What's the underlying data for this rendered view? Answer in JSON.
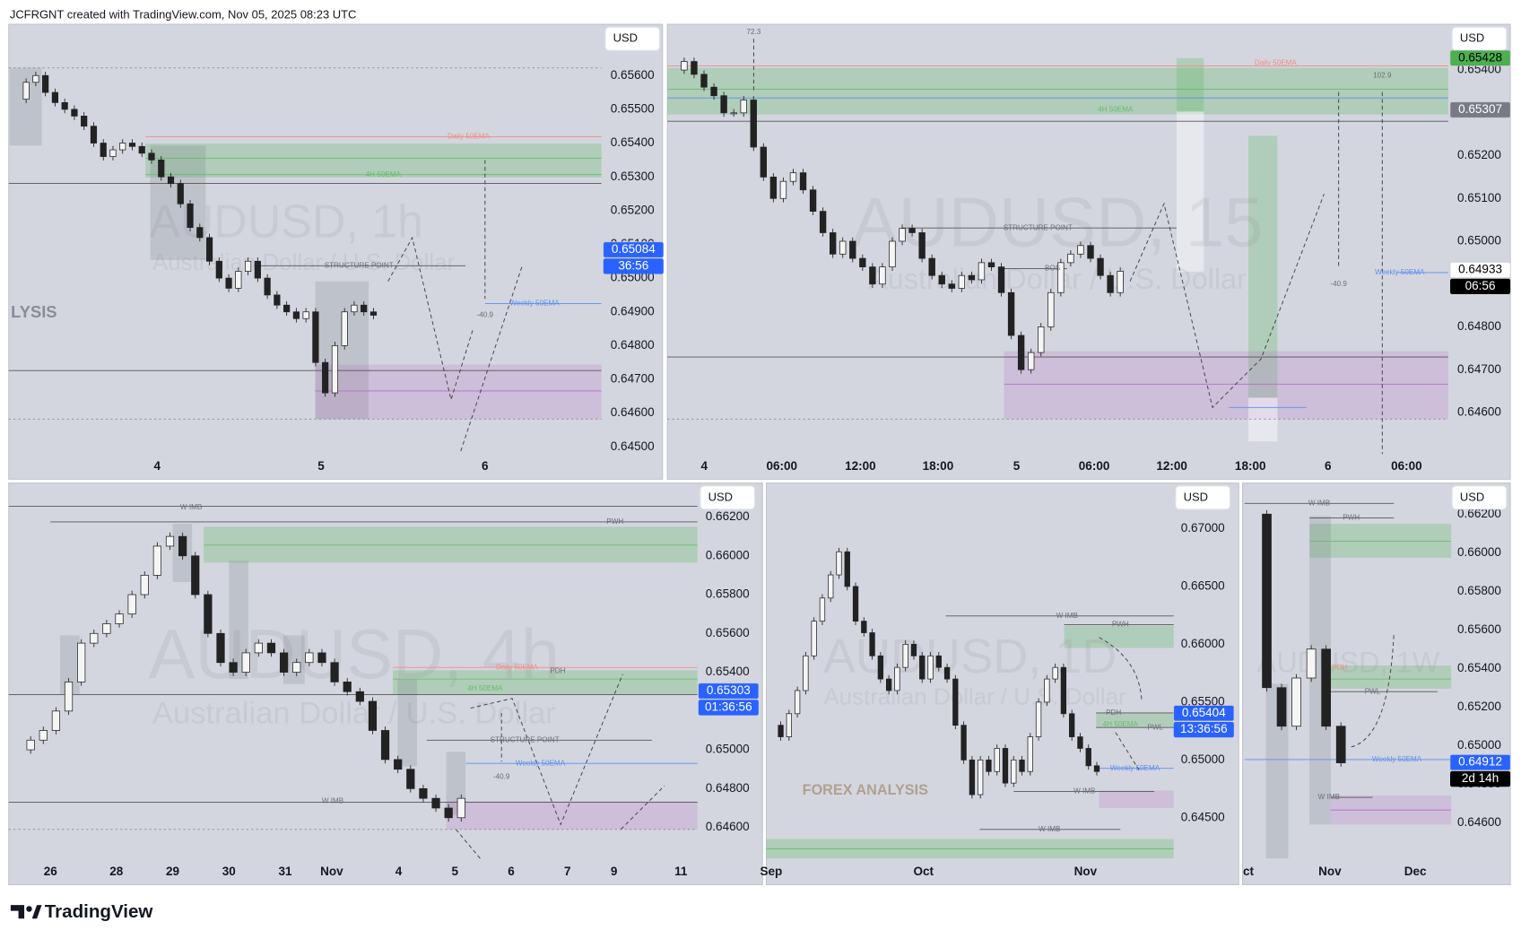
{
  "header": {
    "text": "JCFRGNT created with TradingView.com, Nov 05, 2025 08:23 UTC"
  },
  "footer": {
    "logo": "TradingView"
  },
  "panels": [
    {
      "currency": "USD",
      "watermark": [
        "AUDUSD, 1h",
        "Australian Dollar / U.S. Dollar"
      ],
      "ylim": [
        0.64479,
        0.65752
      ],
      "yticks": [
        {
          "value": 0.656,
          "label": "0.65600"
        },
        {
          "value": 0.655,
          "label": "0.65500"
        },
        {
          "value": 0.654,
          "label": "0.65400"
        },
        {
          "value": 0.653,
          "label": "0.65300"
        },
        {
          "value": 0.652,
          "label": "0.65200"
        },
        {
          "value": 0.651,
          "label": "0.65100"
        },
        {
          "value": 0.65,
          "label": "0.65000"
        },
        {
          "value": 0.649,
          "label": "0.64900"
        },
        {
          "value": 0.648,
          "label": "0.64800"
        },
        {
          "value": 0.647,
          "label": "0.64700"
        },
        {
          "value": 0.646,
          "label": "0.64600"
        },
        {
          "value": 0.645,
          "label": "0.64500"
        }
      ],
      "xticks": [
        "4",
        "5",
        "6"
      ],
      "price_tags": [
        {
          "value": 0.65084,
          "color": "#2962ff",
          "text_color": "#ffffff",
          "countdown": "36:56",
          "countdown_color": "#2962ff"
        }
      ],
      "annotations": [
        "Daily 50EMA",
        "4H 50EMA",
        "STRUCTURE POINT",
        "Weekly 50EMA",
        "-40.9",
        "LYSIS"
      ],
      "prices": [
        0.6553,
        0.6558,
        0.656,
        0.6555,
        0.6552,
        0.655,
        0.6548,
        0.6545,
        0.654,
        0.6536,
        0.6538,
        0.654,
        0.6539,
        0.6537,
        0.6535,
        0.653,
        0.6528,
        0.6522,
        0.6515,
        0.6512,
        0.6505,
        0.65,
        0.6497,
        0.6502,
        0.6505,
        0.65,
        0.6495,
        0.6492,
        0.649,
        0.6488,
        0.649,
        0.6475,
        0.6466,
        0.648,
        0.649,
        0.6492,
        0.649,
        0.6489
      ]
    },
    {
      "currency": "USD",
      "watermark": [
        "AUDUSD, 15",
        "Australian Dollar / U.S. Dollar"
      ],
      "ylim": [
        0.64503,
        0.65507
      ],
      "yticks": [
        {
          "value": 0.654,
          "label": "0.65400"
        },
        {
          "value": 0.653,
          "label": "0.65300"
        },
        {
          "value": 0.652,
          "label": "0.65200"
        },
        {
          "value": 0.651,
          "label": "0.65100"
        },
        {
          "value": 0.65,
          "label": "0.65000"
        },
        {
          "value": 0.649,
          "label": "0.64900"
        },
        {
          "value": 0.648,
          "label": "0.64800"
        },
        {
          "value": 0.647,
          "label": "0.64700"
        },
        {
          "value": 0.646,
          "label": "0.64600"
        }
      ],
      "xticks": [
        "4",
        "06:00",
        "12:00",
        "18:00",
        "5",
        "06:00",
        "12:00",
        "18:00",
        "6",
        "06:00"
      ],
      "price_tags": [
        {
          "value": 0.65428,
          "color": "#4caf50",
          "text_color": "#000000"
        },
        {
          "value": 0.65307,
          "color": "#787b86",
          "text_color": "#ffffff"
        },
        {
          "value": 0.64933,
          "color": "#ffffff",
          "text_color": "#000000",
          "countdown": "06:56",
          "countdown_color": "#000000"
        }
      ],
      "annotations": [
        "72.3",
        "Daily 50EMA",
        "4H 50EMA",
        "STRUCTURE POINT",
        "BOS",
        "102.9",
        "-40.9",
        "Weekly 50EMA"
      ],
      "prices": [
        0.654,
        0.6542,
        0.6539,
        0.6536,
        0.6534,
        0.653,
        0.653,
        0.6533,
        0.6522,
        0.6515,
        0.651,
        0.6514,
        0.6516,
        0.6512,
        0.6507,
        0.6502,
        0.6497,
        0.65,
        0.6496,
        0.6494,
        0.649,
        0.6494,
        0.65,
        0.6503,
        0.6502,
        0.6496,
        0.6492,
        0.649,
        0.6489,
        0.6492,
        0.6491,
        0.6495,
        0.6494,
        0.6488,
        0.6478,
        0.647,
        0.6474,
        0.648,
        0.6488,
        0.6495,
        0.6497,
        0.6499,
        0.6496,
        0.6492,
        0.6488,
        0.6493
      ]
    },
    {
      "currency": "USD",
      "watermark": [
        "AUDUSD, 4h",
        "Australian Dollar / U.S. Dollar"
      ],
      "ylim": [
        0.6444,
        0.66375
      ],
      "yticks": [
        {
          "value": 0.662,
          "label": "0.66200"
        },
        {
          "value": 0.66,
          "label": "0.66000"
        },
        {
          "value": 0.658,
          "label": "0.65800"
        },
        {
          "value": 0.656,
          "label": "0.65600"
        },
        {
          "value": 0.654,
          "label": "0.65400"
        },
        {
          "value": 0.652,
          "label": "0.65200"
        },
        {
          "value": 0.65,
          "label": "0.65000"
        },
        {
          "value": 0.648,
          "label": "0.64800"
        },
        {
          "value": 0.646,
          "label": "0.64600"
        }
      ],
      "xticks": [
        "26",
        "28",
        "29",
        "30",
        "31",
        "Nov",
        "4",
        "5",
        "6",
        "7",
        "9",
        "11"
      ],
      "price_tags": [
        {
          "value": 0.65303,
          "color": "#2962ff",
          "text_color": "#ffffff",
          "countdown": "01:36:56",
          "countdown_color": "#2962ff"
        }
      ],
      "annotations": [
        "W IMB",
        "PWH",
        "Daily 50EMA",
        "PDH",
        "4H 50EMA",
        "STRUCTURE POINT",
        "Weekly 50EMA",
        "-40.9",
        "W IMB"
      ],
      "prices": [
        0.65,
        0.6505,
        0.651,
        0.652,
        0.6535,
        0.6555,
        0.656,
        0.6565,
        0.657,
        0.658,
        0.659,
        0.6605,
        0.661,
        0.66,
        0.658,
        0.656,
        0.6545,
        0.654,
        0.655,
        0.6555,
        0.655,
        0.654,
        0.6545,
        0.655,
        0.6545,
        0.6535,
        0.653,
        0.6525,
        0.651,
        0.6495,
        0.649,
        0.648,
        0.6475,
        0.647,
        0.6465,
        0.6475
      ]
    },
    {
      "currency": "USD",
      "watermark": [
        "AUDUSD, 1D",
        "Australian Dollar / U.S. Dollar"
      ],
      "ylim": [
        0.64148,
        0.67394
      ],
      "yticks": [
        {
          "value": 0.67,
          "label": "0.67000"
        },
        {
          "value": 0.665,
          "label": "0.66500"
        },
        {
          "value": 0.66,
          "label": "0.66000"
        },
        {
          "value": 0.655,
          "label": "0.65500"
        },
        {
          "value": 0.65,
          "label": "0.65000"
        },
        {
          "value": 0.645,
          "label": "0.64500"
        }
      ],
      "xticks": [
        "Sep",
        "Oct",
        "Nov"
      ],
      "price_tags": [
        {
          "value": 0.65404,
          "color": "#2962ff",
          "text_color": "#ffffff",
          "countdown": "13:36:56",
          "countdown_color": "#2962ff"
        }
      ],
      "annotations": [
        "W IMB",
        "PWH",
        "PDH",
        "4H 50EMA",
        "PWL",
        "Weekly 50EMA",
        "W IMB",
        "W IMB",
        "FOREX ANALYSIS"
      ],
      "prices": [
        0.653,
        0.652,
        0.654,
        0.656,
        0.659,
        0.662,
        0.664,
        0.666,
        0.668,
        0.665,
        0.662,
        0.661,
        0.659,
        0.657,
        0.656,
        0.658,
        0.66,
        0.659,
        0.657,
        0.659,
        0.658,
        0.657,
        0.653,
        0.65,
        0.647,
        0.65,
        0.649,
        0.651,
        0.648,
        0.65,
        0.649,
        0.652,
        0.655,
        0.657,
        0.658,
        0.654,
        0.652,
        0.651,
        0.6495,
        0.649
      ]
    },
    {
      "currency": "USD",
      "watermark": [
        "AUDUSD, 1W"
      ],
      "ylim": [
        0.64414,
        0.66361
      ],
      "yticks": [
        {
          "value": 0.662,
          "label": "0.66200"
        },
        {
          "value": 0.66,
          "label": "0.66000"
        },
        {
          "value": 0.658,
          "label": "0.65800"
        },
        {
          "value": 0.656,
          "label": "0.65600"
        },
        {
          "value": 0.654,
          "label": "0.65400"
        },
        {
          "value": 0.652,
          "label": "0.65200"
        },
        {
          "value": 0.65,
          "label": "0.65000"
        },
        {
          "value": 0.648,
          "label": "0.64800"
        },
        {
          "value": 0.646,
          "label": "0.64600"
        }
      ],
      "xticks": [
        "ct",
        "Nov",
        "Dec"
      ],
      "price_tags": [
        {
          "value": 0.64912,
          "color": "#2962ff",
          "text_color": "#ffffff",
          "countdown": "2d 14h",
          "countdown_color": "#000000"
        }
      ],
      "annotations": [
        "W IMB",
        "PWH",
        "PDH",
        "PWL",
        "Weekly 50EMA",
        "W IMB"
      ],
      "prices": [
        0.662,
        0.653,
        0.651,
        0.6535,
        0.655,
        0.651,
        0.6491
      ]
    }
  ]
}
